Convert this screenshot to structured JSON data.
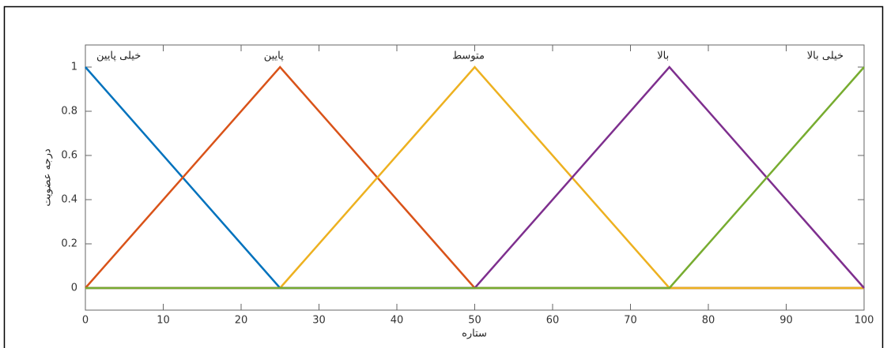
{
  "chart_data": {
    "type": "line",
    "xlabel": "ستاره",
    "ylabel": "درجه عضویت",
    "x": [
      0,
      25,
      50,
      75,
      100
    ],
    "series": [
      {
        "name": "خیلی پایین",
        "color": "#0072BD",
        "values": [
          1,
          0,
          0,
          0,
          0
        ]
      },
      {
        "name": "پایین",
        "color": "#D95319",
        "values": [
          0,
          1,
          0,
          0,
          0
        ]
      },
      {
        "name": "متوسط",
        "color": "#EDB120",
        "values": [
          0,
          0,
          1,
          0,
          0
        ]
      },
      {
        "name": "بالا",
        "color": "#7E2F8E",
        "values": [
          0,
          0,
          0,
          1,
          0
        ]
      },
      {
        "name": "خیلی بالا",
        "color": "#77AC30",
        "values": [
          0,
          0,
          0,
          0,
          1
        ]
      }
    ],
    "xlim": [
      0,
      100
    ],
    "ylim": [
      -0.1,
      1.1
    ],
    "xticks": [
      0,
      10,
      20,
      30,
      40,
      50,
      60,
      70,
      80,
      90,
      100
    ],
    "yticks": [
      0,
      0.2,
      0.4,
      0.6,
      0.8,
      1
    ],
    "grid": false
  }
}
